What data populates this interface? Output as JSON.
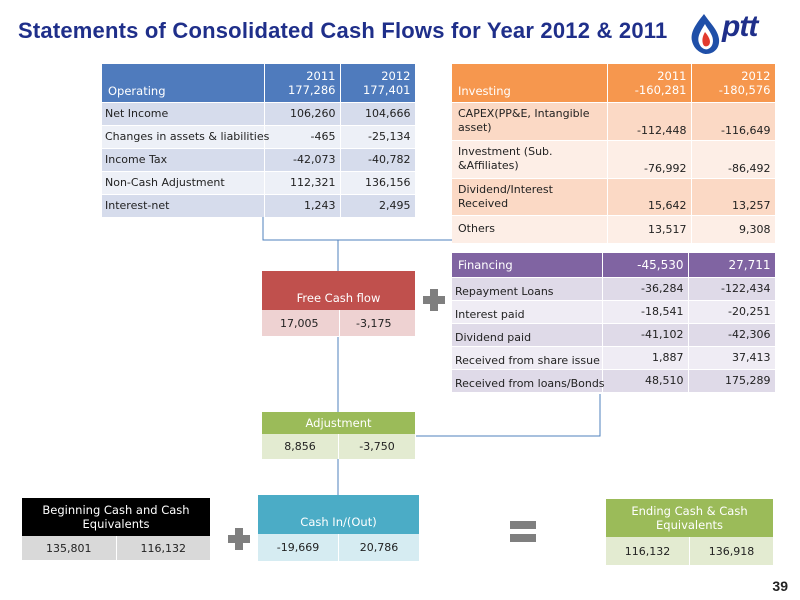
{
  "title": "Statements of Consolidated Cash Flows for Year 2012 & 2011",
  "logo": {
    "text": "ptt",
    "icon": "ptt-flame-logo-icon"
  },
  "page_number": "39",
  "operating": {
    "label": "Operating",
    "col2011": "2011",
    "col2012": "2012",
    "total2011": "177,286",
    "total2012": "177,401",
    "rows": [
      {
        "label": "Net Income",
        "v2011": "106,260",
        "v2012": "104,666"
      },
      {
        "label": "Changes in assets & liabilities",
        "v2011": "-465",
        "v2012": "-25,134"
      },
      {
        "label": "Income Tax",
        "v2011": "-42,073",
        "v2012": "-40,782"
      },
      {
        "label": "Non-Cash  Adjustment",
        "v2011": "112,321",
        "v2012": "136,156"
      },
      {
        "label": "Interest-net",
        "v2011": "1,243",
        "v2012": "2,495"
      }
    ]
  },
  "investing": {
    "label": "Investing",
    "col2011": "2011",
    "col2012": "2012",
    "total2011": "-160,281",
    "total2012": "-180,576",
    "rows": [
      {
        "label": "CAPEX(PP&E, Intangible asset)",
        "v2011": "-112,448",
        "v2012": "-116,649"
      },
      {
        "label": "Investment (Sub. &Affiliates)",
        "v2011": "-76,992",
        "v2012": "-86,492"
      },
      {
        "label": "Dividend/Interest Received",
        "v2011": "15,642",
        "v2012": "13,257"
      },
      {
        "label": "Others",
        "v2011": "13,517",
        "v2012": "9,308"
      }
    ]
  },
  "financing": {
    "label": "Financing",
    "total2011": "-45,530",
    "total2012": "27,711",
    "rows": [
      {
        "label": "Repayment  Loans",
        "v2011": "-36,284",
        "v2012": "-122,434"
      },
      {
        "label": "Interest paid",
        "v2011": "-18,541",
        "v2012": "-20,251"
      },
      {
        "label": "Dividend paid",
        "v2011": "-41,102",
        "v2012": "-42,306"
      },
      {
        "label": "Received from share issue",
        "v2011": "1,887",
        "v2012": "37,413"
      },
      {
        "label": "Received from loans/Bonds",
        "v2011": "48,510",
        "v2012": "175,289"
      }
    ]
  },
  "free_cash_flow": {
    "label": "Free Cash flow",
    "v2011": "17,005",
    "v2012": "-3,175"
  },
  "adjustment": {
    "label": "Adjustment",
    "v2011": "8,856",
    "v2012": "-3,750"
  },
  "cash_in_out": {
    "label": "Cash In/(Out)",
    "v2011": "-19,669",
    "v2012": "20,786"
  },
  "beginning_cash": {
    "label": "Beginning Cash and Cash Equivalents",
    "v2011": "135,801",
    "v2012": "116,132"
  },
  "ending_cash": {
    "label": "Ending Cash & Cash Equivalents",
    "v2011": "116,132",
    "v2012": "136,918"
  },
  "colors": {
    "title": "#1f2f8a",
    "operating": "#4f7bbd",
    "investing": "#f6974e",
    "financing": "#8064a2",
    "free_cash_flow": "#c0504d",
    "adjustment": "#9bbb59",
    "cash_in_out": "#4bacc6",
    "beginning_cash": "#000000",
    "ending_cash": "#9bbb59",
    "connector": "#4f81bd"
  }
}
